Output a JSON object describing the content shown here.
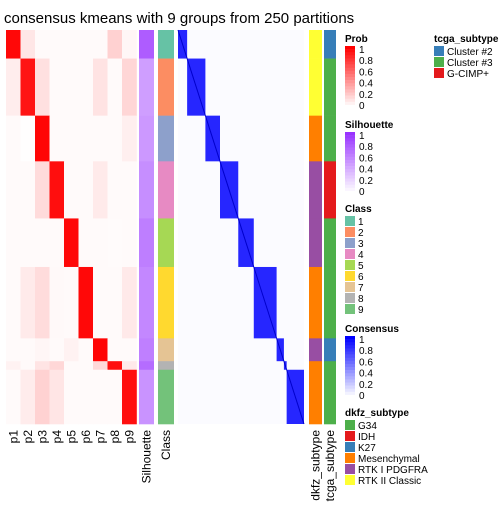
{
  "chart_data": {
    "type": "heatmap",
    "title": "consensus kmeans with 9 groups from 250 partitions",
    "prob_columns": [
      "p1",
      "p2",
      "p3",
      "p4",
      "p5",
      "p6",
      "p7",
      "p8",
      "p9"
    ],
    "annotation_labels": {
      "silhouette": "Silhouette",
      "class": "Class",
      "dkfz": "dkfz_subtype",
      "tcga": "tcga_subtype"
    },
    "groups": [
      {
        "class": "1",
        "size": 10,
        "dkfz": "RTK II Classic",
        "tcga": "Cluster #2"
      },
      {
        "class": "2",
        "size": 20,
        "dkfz": "RTK II Classic",
        "tcga": "Cluster #3"
      },
      {
        "class": "3",
        "size": 16,
        "dkfz": "Mesenchymal",
        "tcga": "Cluster #3"
      },
      {
        "class": "4",
        "size": 20,
        "dkfz": "RTK I PDGFRA",
        "tcga": "G-CIMP+"
      },
      {
        "class": "5",
        "size": 17,
        "dkfz": "RTK I PDGFRA",
        "tcga": "Cluster #3"
      },
      {
        "class": "6",
        "size": 25,
        "dkfz": "Mesenchymal",
        "tcga": "Cluster #3"
      },
      {
        "class": "7",
        "size": 8,
        "dkfz": "RTK I PDGFRA",
        "tcga": "Cluster #2"
      },
      {
        "class": "8",
        "size": 3,
        "dkfz": "Mesenchymal",
        "tcga": "Cluster #3"
      },
      {
        "class": "9",
        "size": 19,
        "dkfz": "Mesenchymal",
        "tcga": "Cluster #3"
      }
    ],
    "legends": [
      {
        "title": "tcga_subtype",
        "type": "discrete",
        "entries": [
          {
            "label": "Cluster #2",
            "color": "#377eb8"
          },
          {
            "label": "Cluster #3",
            "color": "#4daf4a"
          },
          {
            "label": "G-CIMP+",
            "color": "#e41a1c"
          }
        ]
      },
      {
        "title": "Prob",
        "type": "continuous",
        "colors": [
          "#ffffff",
          "#ff0000"
        ],
        "ticks": [
          "1",
          "0.8",
          "0.6",
          "0.4",
          "0.2",
          "0"
        ]
      },
      {
        "title": "Silhouette",
        "type": "continuous",
        "colors": [
          "#ffffff",
          "#9933ff"
        ],
        "ticks": [
          "1",
          "0.8",
          "0.6",
          "0.4",
          "0.2",
          "0"
        ]
      },
      {
        "title": "Class",
        "type": "discrete",
        "entries": [
          {
            "label": "1",
            "color": "#66c2a5"
          },
          {
            "label": "2",
            "color": "#fc8d62"
          },
          {
            "label": "3",
            "color": "#8da0cb"
          },
          {
            "label": "4",
            "color": "#e78ac3"
          },
          {
            "label": "5",
            "color": "#a6d854"
          },
          {
            "label": "6",
            "color": "#ffd92f"
          },
          {
            "label": "7",
            "color": "#e5c494"
          },
          {
            "label": "8",
            "color": "#b3b3b3"
          },
          {
            "label": "9",
            "color": "#73c27a"
          }
        ]
      },
      {
        "title": "Consensus",
        "type": "continuous",
        "colors": [
          "#ffffff",
          "#0000ff"
        ],
        "ticks": [
          "1",
          "0.8",
          "0.6",
          "0.4",
          "0.2",
          "0"
        ]
      },
      {
        "title": "dkfz_subtype",
        "type": "discrete",
        "entries": [
          {
            "label": "G34",
            "color": "#4daf4a"
          },
          {
            "label": "IDH",
            "color": "#e41a1c"
          },
          {
            "label": "K27",
            "color": "#377eb8"
          },
          {
            "label": "Mesenchymal",
            "color": "#ff7f00"
          },
          {
            "label": "RTK I PDGFRA",
            "color": "#984ea3"
          },
          {
            "label": "RTK II Classic",
            "color": "#ffff33"
          }
        ]
      }
    ]
  }
}
